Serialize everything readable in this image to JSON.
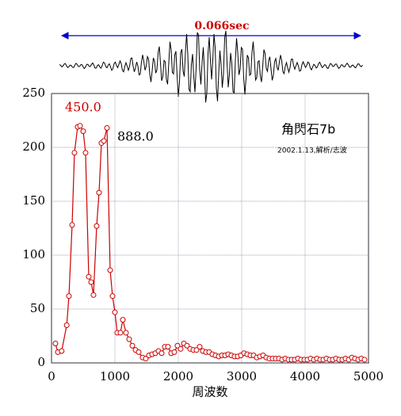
{
  "chart_data": {
    "type": "line",
    "duration_label": "0.066sec",
    "xlabel": "周波数",
    "annotations": [
      "450.0",
      "888.0",
      "角閃石7b",
      "2002.1.13,解析/志波"
    ],
    "xlim": [
      0,
      5000
    ],
    "ylim": [
      0,
      250
    ],
    "xticks": [
      0,
      1000,
      2000,
      3000,
      4000,
      5000
    ],
    "yticks": [
      0,
      50,
      100,
      150,
      200,
      250
    ],
    "grid": true,
    "series": [
      {
        "color": "#cc0000",
        "x": [
          62,
          100,
          160,
          240,
          275,
          325,
          362,
          412,
          450,
          500,
          537,
          587,
          625,
          662,
          712,
          750,
          787,
          825,
          875,
          925,
          962,
          1000,
          1037,
          1087,
          1125,
          1175,
          1225,
          1275,
          1325,
          1375,
          1437,
          1487,
          1537,
          1587,
          1637,
          1687,
          1737,
          1787,
          1837,
          1887,
          1937,
          1987,
          2037,
          2087,
          2137,
          2187,
          2237,
          2287,
          2337,
          2387,
          2437,
          2487,
          2537,
          2587,
          2637,
          2687,
          2737,
          2787,
          2837,
          2887,
          2937,
          2987,
          3037,
          3087,
          3137,
          3187,
          3237,
          3287,
          3337,
          3387,
          3437,
          3487,
          3537,
          3587,
          3637,
          3687,
          3737,
          3787,
          3837,
          3887,
          3937,
          3987,
          4037,
          4087,
          4137,
          4187,
          4237,
          4287,
          4337,
          4387,
          4437,
          4487,
          4537,
          4587,
          4637,
          4687,
          4737,
          4787,
          4837,
          4887,
          4937
        ],
        "values": [
          18,
          10,
          11,
          35,
          62,
          128,
          195,
          219,
          220,
          215,
          195,
          80,
          75,
          63,
          127,
          158,
          204,
          206,
          218,
          86,
          62,
          47,
          28,
          28,
          40,
          28,
          22,
          16,
          12,
          10,
          5,
          4,
          7,
          8,
          9,
          11,
          9,
          15,
          15,
          9,
          10,
          16,
          13,
          18,
          16,
          13,
          12,
          12,
          15,
          11,
          10,
          10,
          8,
          7,
          6,
          7,
          7,
          8,
          7,
          6,
          6,
          7,
          9,
          8,
          7,
          7,
          5,
          6,
          7,
          5,
          4,
          4,
          4,
          4,
          3,
          4,
          3,
          3,
          3,
          4,
          3,
          3,
          3,
          4,
          3,
          4,
          3,
          3,
          4,
          3,
          3,
          4,
          3,
          3,
          4,
          3,
          5,
          4,
          3,
          4,
          3
        ]
      }
    ]
  }
}
